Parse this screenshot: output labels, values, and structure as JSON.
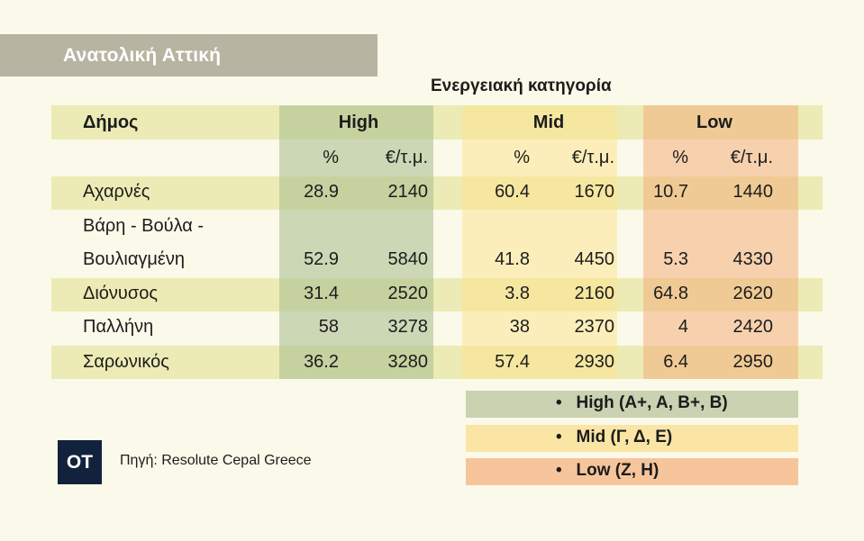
{
  "title": "Ανατολική Αττική",
  "subheading": "Ενεργειακή κατηγορία",
  "chart_data": {
    "type": "table",
    "columns": {
      "municipality": "Δήμος",
      "groups": [
        "High",
        "Mid",
        "Low"
      ],
      "subcolumns": [
        "%",
        "€/τ.μ."
      ]
    },
    "rows": [
      {
        "name_line1": "Αχαρνές",
        "name_line2": "",
        "high_pct": "28.9",
        "high_eur": "2140",
        "mid_pct": "60.4",
        "mid_eur": "1670",
        "low_pct": "10.7",
        "low_eur": "1440"
      },
      {
        "name_line1": "Βάρη - Βούλα -",
        "name_line2": "Βουλιαγμένη",
        "high_pct": "52.9",
        "high_eur": "5840",
        "mid_pct": "41.8",
        "mid_eur": "4450",
        "low_pct": "5.3",
        "low_eur": "4330"
      },
      {
        "name_line1": "Διόνυσος",
        "name_line2": "",
        "high_pct": "31.4",
        "high_eur": "2520",
        "mid_pct": "3.8",
        "mid_eur": "2160",
        "low_pct": "64.8",
        "low_eur": "2620"
      },
      {
        "name_line1": "Παλλήνη",
        "name_line2": "",
        "high_pct": "58",
        "high_eur": "3278",
        "mid_pct": "38",
        "mid_eur": "2370",
        "low_pct": "4",
        "low_eur": "2420"
      },
      {
        "name_line1": "Σαρωνικός",
        "name_line2": "",
        "high_pct": "36.2",
        "high_eur": "3280",
        "mid_pct": "57.4",
        "mid_eur": "2930",
        "low_pct": "6.4",
        "low_eur": "2950"
      }
    ]
  },
  "legend": [
    {
      "text": "High (A+, A, B+, B)",
      "color": "#c9d2b1"
    },
    {
      "text": "Mid (Γ, Δ, Ε)",
      "color": "#fbe5a4"
    },
    {
      "text": "Low (Ζ, Η)",
      "color": "#f6c59b"
    }
  ],
  "bullet": "•",
  "logo_text": "OT",
  "source": "Πηγή: Resolute Cepal Greece"
}
